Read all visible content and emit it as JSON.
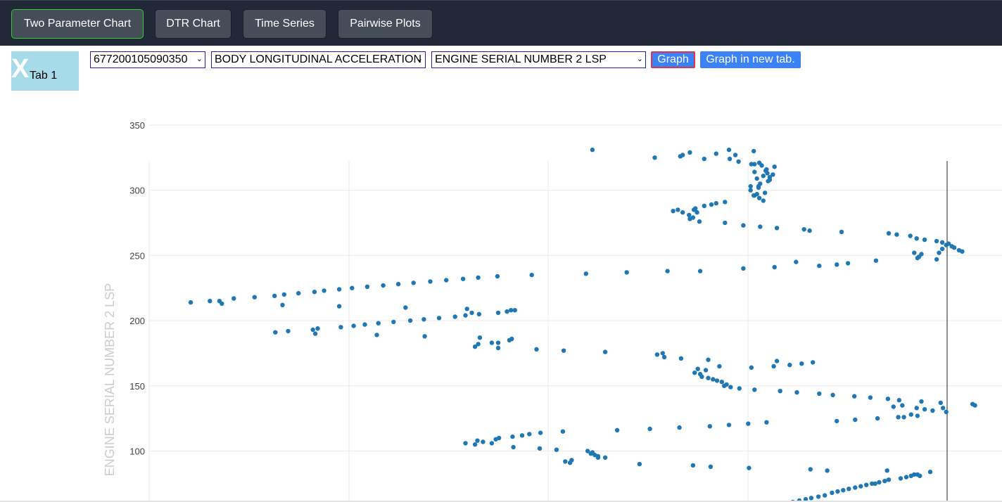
{
  "nav": {
    "buttons": [
      "Two Parameter Chart",
      "DTR Chart",
      "Time Series",
      "Pairwise Plots"
    ]
  },
  "tab": {
    "close_glyph": "X",
    "label": "Tab 1"
  },
  "controls": {
    "select_id": "677200105090350",
    "select_x_param": "BODY LONGITUDINAL ACCELERATION",
    "select_y_param": "ENGINE SERIAL NUMBER 2 LSP",
    "graph_label": "Graph",
    "new_tab_label": "Graph in new tab.",
    "chevron_icon": "chevron-down-icon"
  },
  "colors": {
    "accent_active": "#2bd02b",
    "button_blue": "#3b82f6",
    "marker": "#1f77b4"
  },
  "chart_data": {
    "type": "scatter",
    "ylabel": "ENGINE SERIAL NUMBER 2 LSP",
    "ylim": [
      62,
      365
    ],
    "yticks": [
      100,
      150,
      200,
      250,
      300,
      350
    ],
    "xlim": [
      0,
      1
    ],
    "grid": true,
    "series": [
      {
        "values_xy": [
          [
            0.052,
            214
          ],
          [
            0.076,
            215
          ],
          [
            0.088,
            215
          ],
          [
            0.091,
            213
          ],
          [
            0.106,
            217
          ],
          [
            0.132,
            218
          ],
          [
            0.157,
            219
          ],
          [
            0.167,
            212
          ],
          [
            0.169,
            220
          ],
          [
            0.187,
            221
          ],
          [
            0.207,
            222
          ],
          [
            0.219,
            223
          ],
          [
            0.238,
            224
          ],
          [
            0.254,
            225
          ],
          [
            0.273,
            226
          ],
          [
            0.293,
            227
          ],
          [
            0.312,
            228
          ],
          [
            0.331,
            229
          ],
          [
            0.352,
            230
          ],
          [
            0.372,
            231
          ],
          [
            0.393,
            232
          ],
          [
            0.412,
            233
          ],
          [
            0.436,
            234
          ],
          [
            0.479,
            235
          ],
          [
            0.547,
            236
          ],
          [
            0.598,
            237
          ],
          [
            0.649,
            238
          ],
          [
            0.69,
            238
          ],
          [
            0.744,
            240
          ],
          [
            0.783,
            241
          ],
          [
            0.81,
            245
          ],
          [
            0.839,
            242
          ],
          [
            0.861,
            243
          ],
          [
            0.875,
            244
          ],
          [
            0.91,
            246
          ],
          [
            0.238,
            211
          ],
          [
            0.321,
            210
          ],
          [
            0.158,
            191
          ],
          [
            0.174,
            192
          ],
          [
            0.205,
            193
          ],
          [
            0.208,
            190
          ],
          [
            0.211,
            194
          ],
          [
            0.24,
            195
          ],
          [
            0.256,
            196
          ],
          [
            0.27,
            197
          ],
          [
            0.287,
            198
          ],
          [
            0.285,
            189
          ],
          [
            0.306,
            199
          ],
          [
            0.327,
            200
          ],
          [
            0.344,
            201
          ],
          [
            0.345,
            188
          ],
          [
            0.363,
            202
          ],
          [
            0.383,
            203
          ],
          [
            0.396,
            204
          ],
          [
            0.398,
            209
          ],
          [
            0.404,
            206
          ],
          [
            0.413,
            205
          ],
          [
            0.437,
            206
          ],
          [
            0.448,
            207
          ],
          [
            0.453,
            208
          ],
          [
            0.458,
            208
          ],
          [
            0.408,
            180
          ],
          [
            0.412,
            182
          ],
          [
            0.414,
            187
          ],
          [
            0.429,
            183
          ],
          [
            0.437,
            183
          ],
          [
            0.437,
            179
          ],
          [
            0.451,
            185
          ],
          [
            0.454,
            186
          ],
          [
            0.485,
            178
          ],
          [
            0.519,
            177
          ],
          [
            0.571,
            176
          ],
          [
            0.636,
            174
          ],
          [
            0.643,
            175
          ],
          [
            0.645,
            172
          ],
          [
            0.666,
            171
          ],
          [
            0.683,
            160
          ],
          [
            0.687,
            163
          ],
          [
            0.69,
            159
          ],
          [
            0.692,
            157
          ],
          [
            0.697,
            162
          ],
          [
            0.7,
            156
          ],
          [
            0.706,
            155
          ],
          [
            0.7,
            170
          ],
          [
            0.711,
            154
          ],
          [
            0.714,
            165
          ],
          [
            0.717,
            153
          ],
          [
            0.72,
            150
          ],
          [
            0.723,
            151
          ],
          [
            0.728,
            149
          ],
          [
            0.739,
            148
          ],
          [
            0.758,
            147
          ],
          [
            0.754,
            164
          ],
          [
            0.782,
            165
          ],
          [
            0.786,
            169
          ],
          [
            0.802,
            166
          ],
          [
            0.817,
            167
          ],
          [
            0.831,
            168
          ],
          [
            0.811,
            145
          ],
          [
            0.79,
            146
          ],
          [
            0.839,
            144
          ],
          [
            0.856,
            143
          ],
          [
            0.883,
            142
          ],
          [
            0.903,
            141
          ],
          [
            0.925,
            140
          ],
          [
            0.932,
            134
          ],
          [
            0.939,
            139
          ],
          [
            0.943,
            135
          ],
          [
            0.954,
            128
          ],
          [
            0.961,
            133
          ],
          [
            0.967,
            138
          ],
          [
            0.971,
            132
          ],
          [
            0.981,
            131
          ],
          [
            0.991,
            137
          ],
          [
            0.994,
            133
          ],
          [
            0.998,
            130
          ],
          [
            0.945,
            126
          ],
          [
            0.962,
            127
          ],
          [
            0.938,
            126
          ],
          [
            0.912,
            125
          ],
          [
            0.884,
            124
          ],
          [
            0.861,
            123
          ],
          [
            1.031,
            136
          ],
          [
            1.034,
            135
          ],
          [
            0.396,
            106
          ],
          [
            0.408,
            105
          ],
          [
            0.411,
            108
          ],
          [
            0.418,
            107
          ],
          [
            0.429,
            106
          ],
          [
            0.434,
            109
          ],
          [
            0.438,
            110
          ],
          [
            0.455,
            111
          ],
          [
            0.456,
            103
          ],
          [
            0.467,
            112
          ],
          [
            0.476,
            113
          ],
          [
            0.49,
            114
          ],
          [
            0.489,
            102
          ],
          [
            0.51,
            101
          ],
          [
            0.518,
            115
          ],
          [
            0.521,
            92
          ],
          [
            0.527,
            91
          ],
          [
            0.529,
            93
          ],
          [
            0.549,
            100
          ],
          [
            0.553,
            98
          ],
          [
            0.558,
            97
          ],
          [
            0.555,
            99
          ],
          [
            0.562,
            95
          ],
          [
            0.562,
            96
          ],
          [
            0.571,
            95
          ],
          [
            0.586,
            116
          ],
          [
            0.614,
            90
          ],
          [
            0.627,
            117
          ],
          [
            0.664,
            118
          ],
          [
            0.681,
            89
          ],
          [
            0.702,
            119
          ],
          [
            0.703,
            88
          ],
          [
            0.726,
            120
          ],
          [
            0.75,
            121
          ],
          [
            0.751,
            87
          ],
          [
            0.773,
            122
          ],
          [
            0.828,
            86
          ],
          [
            0.849,
            85
          ],
          [
            0.796,
            60
          ],
          [
            0.806,
            61
          ],
          [
            0.814,
            62
          ],
          [
            0.822,
            63
          ],
          [
            0.829,
            64
          ],
          [
            0.838,
            65
          ],
          [
            0.846,
            66
          ],
          [
            0.855,
            68
          ],
          [
            0.862,
            69
          ],
          [
            0.869,
            70
          ],
          [
            0.876,
            71
          ],
          [
            0.884,
            72
          ],
          [
            0.891,
            73
          ],
          [
            0.898,
            74
          ],
          [
            0.905,
            75
          ],
          [
            0.909,
            75
          ],
          [
            0.914,
            76
          ],
          [
            0.921,
            77
          ],
          [
            0.926,
            78
          ],
          [
            0.941,
            79
          ],
          [
            0.948,
            80
          ],
          [
            0.954,
            81
          ],
          [
            0.958,
            82
          ],
          [
            0.962,
            82
          ],
          [
            0.965,
            81
          ],
          [
            0.924,
            85
          ],
          [
            0.978,
            84
          ],
          [
            0.555,
            331
          ],
          [
            0.633,
            325
          ],
          [
            0.665,
            326
          ],
          [
            0.668,
            327
          ],
          [
            0.677,
            329
          ],
          [
            0.695,
            324
          ],
          [
            0.71,
            328
          ],
          [
            0.726,
            331
          ],
          [
            0.727,
            324
          ],
          [
            0.738,
            322
          ],
          [
            0.734,
            327
          ],
          [
            0.764,
            321
          ],
          [
            0.754,
            320
          ],
          [
            0.753,
            300
          ],
          [
            0.753,
            303
          ],
          [
            0.757,
            296
          ],
          [
            0.757,
            330
          ],
          [
            0.758,
            314
          ],
          [
            0.761,
            309
          ],
          [
            0.761,
            297
          ],
          [
            0.763,
            302
          ],
          [
            0.763,
            303
          ],
          [
            0.764,
            294
          ],
          [
            0.765,
            305
          ],
          [
            0.767,
            319
          ],
          [
            0.769,
            292
          ],
          [
            0.769,
            311
          ],
          [
            0.771,
            298
          ],
          [
            0.772,
            315
          ],
          [
            0.773,
            316
          ],
          [
            0.774,
            313
          ],
          [
            0.775,
            307
          ],
          [
            0.777,
            308
          ],
          [
            0.777,
            310
          ],
          [
            0.781,
            312
          ],
          [
            0.783,
            318
          ],
          [
            0.758,
            320
          ],
          [
            0.758,
            296
          ],
          [
            0.656,
            284
          ],
          [
            0.662,
            285
          ],
          [
            0.668,
            283
          ],
          [
            0.676,
            281
          ],
          [
            0.677,
            278
          ],
          [
            0.681,
            279
          ],
          [
            0.682,
            285
          ],
          [
            0.684,
            286
          ],
          [
            0.686,
            283
          ],
          [
            0.689,
            276
          ],
          [
            0.695,
            288
          ],
          [
            0.704,
            289
          ],
          [
            0.71,
            290
          ],
          [
            0.721,
            291
          ],
          [
            0.721,
            275
          ],
          [
            0.744,
            273
          ],
          [
            0.765,
            272
          ],
          [
            0.786,
            271
          ],
          [
            0.82,
            270
          ],
          [
            0.827,
            269
          ],
          [
            0.867,
            268
          ],
          [
            0.926,
            267
          ],
          [
            0.936,
            266
          ],
          [
            0.953,
            265
          ],
          [
            0.961,
            263
          ],
          [
            0.971,
            262
          ],
          [
            0.986,
            261
          ],
          [
            0.993,
            260
          ],
          [
            0.998,
            258
          ],
          [
            1.001,
            259
          ],
          [
            1.008,
            256
          ],
          [
            1.005,
            257
          ],
          [
            1.014,
            254
          ],
          [
            1.018,
            253
          ],
          [
            0.993,
            255
          ],
          [
            0.967,
            251
          ],
          [
            0.962,
            248
          ],
          [
            0.958,
            252
          ],
          [
            0.964,
            249
          ],
          [
            0.986,
            247
          ],
          [
            0.989,
            252
          ]
        ]
      }
    ]
  }
}
